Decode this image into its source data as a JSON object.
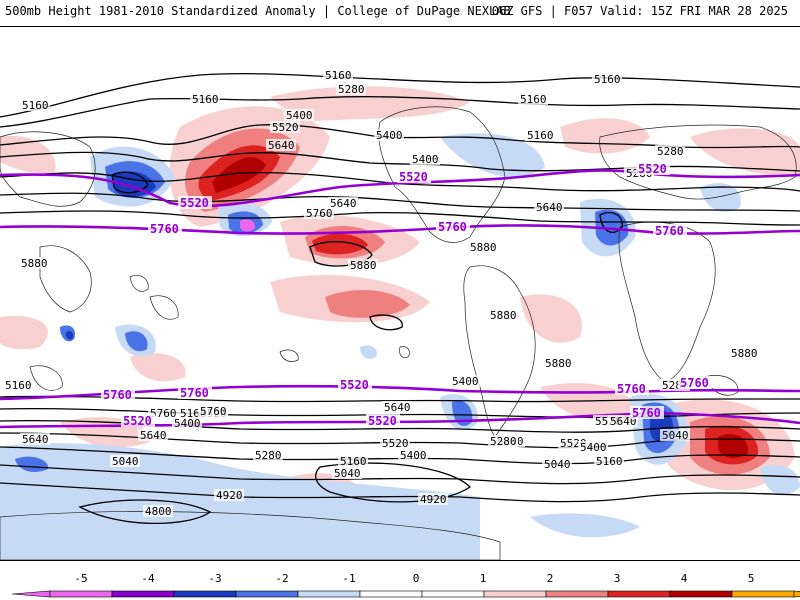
{
  "header": {
    "title_left": "500mb Height 1981-2010 Standardized Anomaly | College of DuPage NEXLAB",
    "title_right": "06Z GFS | F057 Valid: 15Z FRI MAR 28 2025"
  },
  "colors": {
    "anom_neg5": "#ee66ee",
    "anom_neg4": "#8800cc",
    "anom_neg3": "#1b3bbf",
    "anom_neg2": "#4a73e8",
    "anom_neg1": "#c6daf6",
    "anom_zero": "#ffffff",
    "anom_pos1": "#f9d0d0",
    "anom_pos2": "#f08080",
    "anom_pos3": "#dd2222",
    "anom_pos4": "#b00000",
    "anom_pos5": "#ffa500",
    "highlight_contour": "#9400d3"
  },
  "colorbar": {
    "ticks": [
      "-5",
      "-4",
      "-3",
      "-2",
      "-1",
      "0",
      "1",
      "2",
      "3",
      "4",
      "5"
    ]
  },
  "contour_labels": {
    "black": [
      "5160",
      "5280",
      "5160",
      "5160",
      "5160",
      "5160",
      "5400",
      "5520",
      "5640",
      "5400",
      "5160",
      "5400",
      "5280",
      "5280",
      "5640",
      "5640",
      "5760",
      "5880",
      "5880",
      "5880",
      "5880",
      "5880",
      "5880",
      "5160",
      "5280",
      "5400",
      "5520",
      "5640",
      "5760",
      "5160",
      "5400",
      "5520",
      "5640",
      "5280",
      "5040",
      "4920",
      "4800",
      "5160",
      "5040",
      "5280",
      "5400",
      "5520",
      "5040",
      "5160",
      "4920",
      "5640",
      "5760",
      "5520",
      "5640",
      "5280",
      "5400",
      "5040"
    ],
    "purple": [
      "5520",
      "5520",
      "5760",
      "5760",
      "5520",
      "5760",
      "5760",
      "5520",
      "5760",
      "5760",
      "5520",
      "5520",
      "5760",
      "5760"
    ]
  }
}
